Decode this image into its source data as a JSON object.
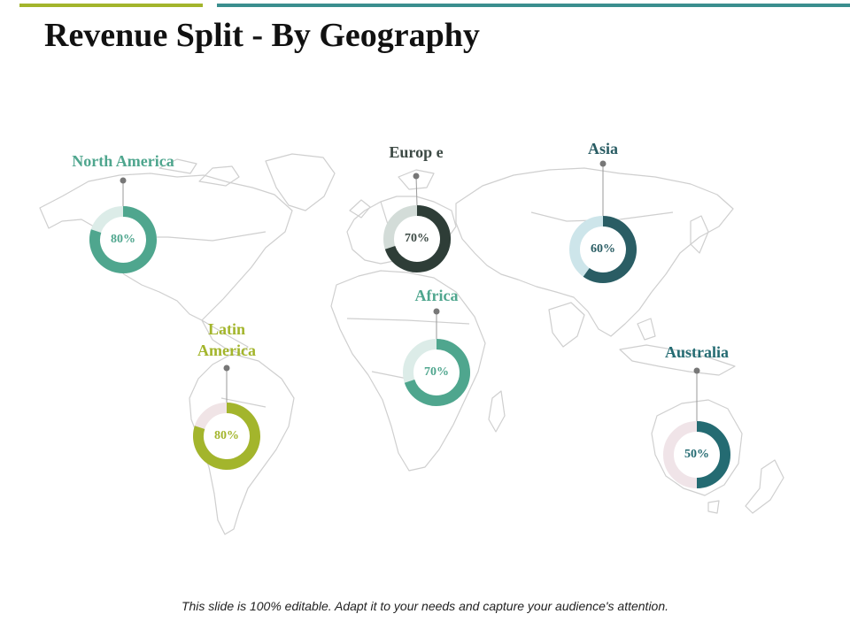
{
  "title": "Revenue Split - By Geography",
  "footer": "This slide is 100% editable. Adapt it to your needs and capture your audience's attention.",
  "chart_data": {
    "type": "pie",
    "variant": "donut",
    "regions": [
      {
        "name": "North America",
        "value": 80,
        "label": "80%",
        "color": "#4fa68e",
        "track": "#dcece8",
        "text_color": "#4fa68e"
      },
      {
        "name": "Europ e",
        "value": 70,
        "label": "70%",
        "color": "#2e3d37",
        "track": "#d3dcd8",
        "text_color": "#3d4a45"
      },
      {
        "name": "Asia",
        "value": 60,
        "label": "60%",
        "color": "#2a5d64",
        "track": "#cde5ea",
        "text_color": "#2a5d64"
      },
      {
        "name": "Latin America",
        "value": 80,
        "label": "80%",
        "color": "#a3b52c",
        "track": "#f0e4e6",
        "text_color": "#a3b52c"
      },
      {
        "name": "Africa",
        "value": 70,
        "label": "70%",
        "color": "#4fa68e",
        "track": "#dcece8",
        "text_color": "#4fa68e"
      },
      {
        "name": "Australia",
        "value": 50,
        "label": "50%",
        "color": "#246b72",
        "track": "#f0e4e8",
        "text_color": "#246b72"
      }
    ]
  }
}
